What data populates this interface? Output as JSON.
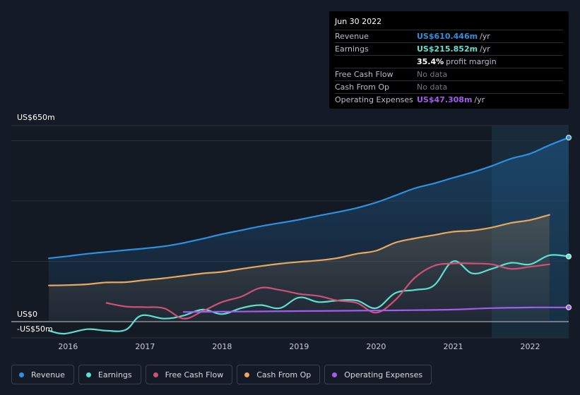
{
  "tooltip": {
    "date": "Jun 30 2022",
    "rows": [
      {
        "label": "Revenue",
        "value": "US$610.446m",
        "unit": "/yr",
        "color": "#2f8fe0"
      },
      {
        "label": "Earnings",
        "value": "US$215.852m",
        "unit": "/yr",
        "color": "#5fe0cf"
      },
      {
        "label": "",
        "value": "35.4%",
        "unit": "profit margin",
        "color": "#ffffff"
      },
      {
        "label": "Free Cash Flow",
        "value": "No data",
        "unit": "",
        "color": "#6f7784"
      },
      {
        "label": "Cash From Op",
        "value": "No data",
        "unit": "",
        "color": "#6f7784"
      },
      {
        "label": "Operating Expenses",
        "value": "US$47.308m",
        "unit": "/yr",
        "color": "#a35cf0"
      }
    ]
  },
  "chart_data": {
    "type": "line",
    "y_top_label": "US$650m",
    "y_zero_label": "US$0",
    "y_bottom_label": "-US$50m",
    "ylim": [
      -50,
      650
    ],
    "xlim": [
      2015.3,
      2022.5
    ],
    "x_ticks": [
      "2016",
      "2017",
      "2018",
      "2019",
      "2020",
      "2021",
      "2022"
    ],
    "x_tick_values": [
      2016,
      2017,
      2018,
      2019,
      2020,
      2021,
      2022
    ],
    "highlight_start": 2021.5,
    "series": [
      {
        "name": "Revenue",
        "color": "#2f8fe0",
        "fill": true,
        "end_marker": true,
        "x": [
          2015.75,
          2016.0,
          2016.25,
          2016.5,
          2016.75,
          2017.0,
          2017.25,
          2017.5,
          2017.75,
          2018.0,
          2018.25,
          2018.5,
          2018.75,
          2019.0,
          2019.25,
          2019.5,
          2019.75,
          2020.0,
          2020.25,
          2020.5,
          2020.75,
          2021.0,
          2021.25,
          2021.5,
          2021.75,
          2022.0,
          2022.25,
          2022.5
        ],
        "y": [
          210,
          217,
          225,
          231,
          237,
          243,
          250,
          261,
          275,
          290,
          303,
          316,
          327,
          338,
          351,
          363,
          377,
          395,
          418,
          442,
          458,
          477,
          495,
          516,
          540,
          557,
          585,
          610
        ]
      },
      {
        "name": "Cash From Op",
        "color": "#e8a85f",
        "fill": true,
        "end_marker": false,
        "x": [
          2015.75,
          2016.0,
          2016.25,
          2016.5,
          2016.75,
          2017.0,
          2017.25,
          2017.5,
          2017.75,
          2018.0,
          2018.25,
          2018.5,
          2018.75,
          2019.0,
          2019.25,
          2019.5,
          2019.75,
          2020.0,
          2020.25,
          2020.5,
          2020.75,
          2021.0,
          2021.25,
          2021.5,
          2021.75,
          2022.0,
          2022.25
        ],
        "y": [
          120,
          121,
          124,
          130,
          131,
          138,
          144,
          152,
          160,
          165,
          175,
          184,
          192,
          198,
          203,
          211,
          225,
          235,
          262,
          276,
          287,
          298,
          302,
          312,
          327,
          337,
          354
        ]
      },
      {
        "name": "Earnings",
        "color": "#5fe0cf",
        "fill": false,
        "end_marker": true,
        "x": [
          2015.75,
          2015.95,
          2016.25,
          2016.5,
          2016.75,
          2016.95,
          2017.25,
          2017.5,
          2017.75,
          2018.0,
          2018.25,
          2018.5,
          2018.75,
          2019.0,
          2019.25,
          2019.5,
          2019.75,
          2020.0,
          2020.25,
          2020.5,
          2020.75,
          2021.0,
          2021.25,
          2021.5,
          2021.75,
          2022.0,
          2022.25,
          2022.5
        ],
        "y": [
          -30,
          -40,
          -25,
          -30,
          -27,
          20,
          10,
          20,
          40,
          25,
          45,
          55,
          45,
          80,
          65,
          70,
          70,
          45,
          95,
          105,
          120,
          200,
          160,
          175,
          195,
          190,
          220,
          216
        ]
      },
      {
        "name": "Free Cash Flow",
        "color": "#d0507a",
        "fill": false,
        "end_marker": false,
        "x": [
          2016.5,
          2016.75,
          2017.0,
          2017.25,
          2017.5,
          2017.75,
          2018.0,
          2018.25,
          2018.5,
          2018.75,
          2019.0,
          2019.25,
          2019.5,
          2019.75,
          2020.0,
          2020.25,
          2020.5,
          2020.75,
          2021.0,
          2021.25,
          2021.5,
          2021.75,
          2022.0,
          2022.25
        ],
        "y": [
          62,
          50,
          48,
          44,
          10,
          35,
          65,
          83,
          112,
          105,
          92,
          85,
          70,
          62,
          30,
          72,
          145,
          185,
          193,
          193,
          190,
          175,
          182,
          190
        ]
      },
      {
        "name": "Operating Expenses",
        "color": "#a35cf0",
        "fill": false,
        "end_marker": true,
        "x": [
          2017.5,
          2018.0,
          2018.5,
          2019.0,
          2019.5,
          2020.0,
          2020.5,
          2021.0,
          2021.5,
          2022.0,
          2022.5
        ],
        "y": [
          32,
          33,
          34,
          35,
          36,
          37,
          38,
          40,
          45,
          47,
          47.3
        ]
      }
    ]
  },
  "legend": {
    "items": [
      {
        "label": "Revenue",
        "color": "#2f8fe0"
      },
      {
        "label": "Earnings",
        "color": "#5fe0cf"
      },
      {
        "label": "Free Cash Flow",
        "color": "#d0507a"
      },
      {
        "label": "Cash From Op",
        "color": "#e8a85f"
      },
      {
        "label": "Operating Expenses",
        "color": "#a35cf0"
      }
    ]
  }
}
